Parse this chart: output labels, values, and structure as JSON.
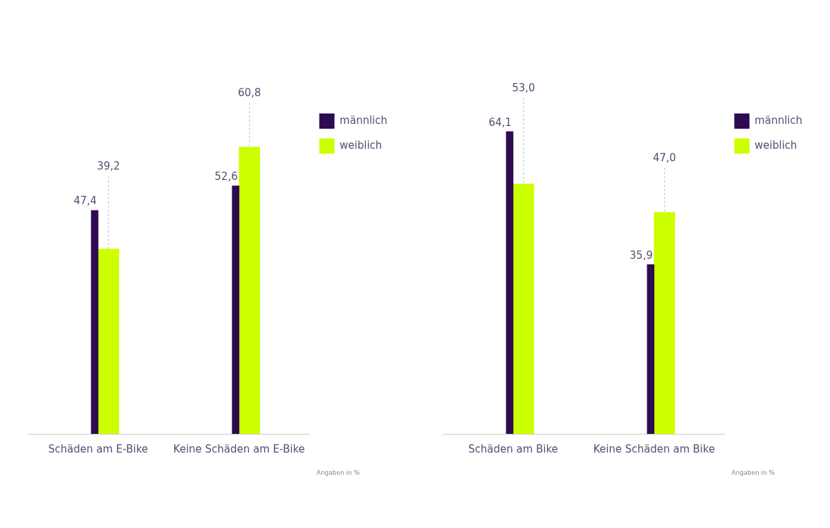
{
  "chart_data": [
    {
      "type": "bar",
      "categories": [
        "Schäden am E-Bike",
        "Keine Schäden am E-Bike"
      ],
      "series": [
        {
          "name": "männlich",
          "color": "#2d0b50",
          "values": [
            47.4,
            52.6
          ],
          "value_labels": [
            "47,4",
            "52,6"
          ]
        },
        {
          "name": "weiblich",
          "color": "#ccff00",
          "values": [
            39.2,
            60.8
          ],
          "value_labels": [
            "39,2",
            "60,8"
          ]
        }
      ],
      "legend": "top right",
      "grid": false,
      "annotations": [
        "Angaben in %"
      ]
    },
    {
      "type": "bar",
      "categories": [
        "Schäden am Bike",
        "Keine Schäden am Bike"
      ],
      "series": [
        {
          "name": "männlich",
          "color": "#2d0b50",
          "values": [
            64.1,
            35.9
          ],
          "value_labels": [
            "64,1",
            "35,9"
          ]
        },
        {
          "name": "weiblich",
          "color": "#ccff00",
          "values": [
            53.0,
            47.0
          ],
          "value_labels": [
            "53,0",
            "47,0"
          ]
        }
      ],
      "legend": "top right",
      "grid": false,
      "annotations": [
        "Angaben in %"
      ]
    }
  ]
}
